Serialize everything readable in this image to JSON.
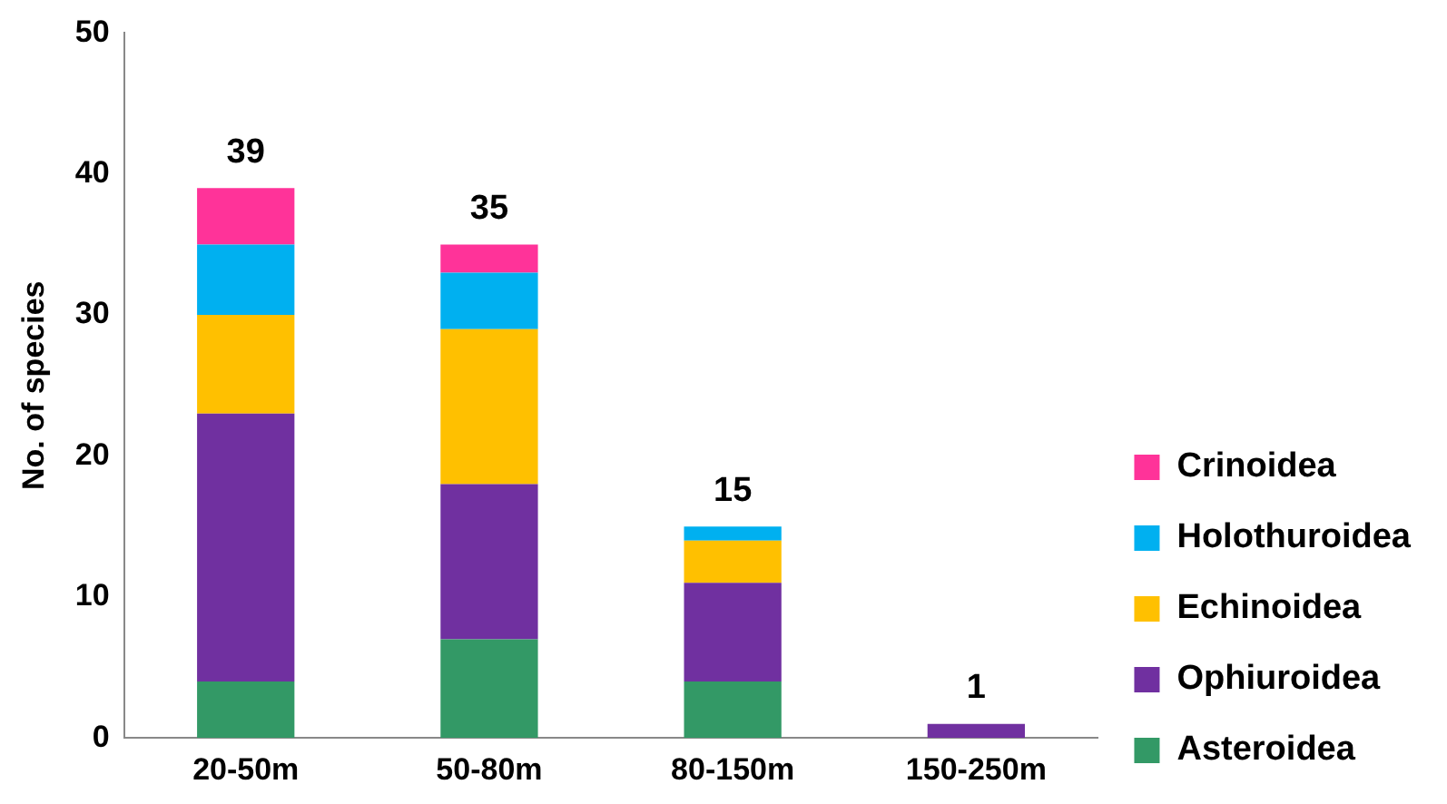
{
  "chart_data": {
    "type": "bar",
    "stacked": true,
    "ylabel": "No. of species",
    "categories": [
      "20-50m",
      "50-80m",
      "80-150m",
      "150-250m"
    ],
    "series": [
      {
        "name": "Asteroidea",
        "color": "#339966",
        "values": [
          4,
          7,
          4,
          0
        ]
      },
      {
        "name": "Ophiuroidea",
        "color": "#7030a0",
        "values": [
          19,
          11,
          7,
          1
        ]
      },
      {
        "name": "Echinoidea",
        "color": "#ffc000",
        "values": [
          7,
          11,
          3,
          0
        ]
      },
      {
        "name": "Holothuroidea",
        "color": "#00b0f0",
        "values": [
          5,
          4,
          1,
          0
        ]
      },
      {
        "name": "Crinoidea",
        "color": "#ff3399",
        "values": [
          4,
          2,
          0,
          0
        ]
      }
    ],
    "totals": [
      "39",
      "35",
      "15",
      "1"
    ],
    "ylim": [
      0,
      50
    ],
    "yticks": [
      0,
      10,
      20,
      30,
      40,
      50
    ],
    "grid": false,
    "legend": "right"
  }
}
